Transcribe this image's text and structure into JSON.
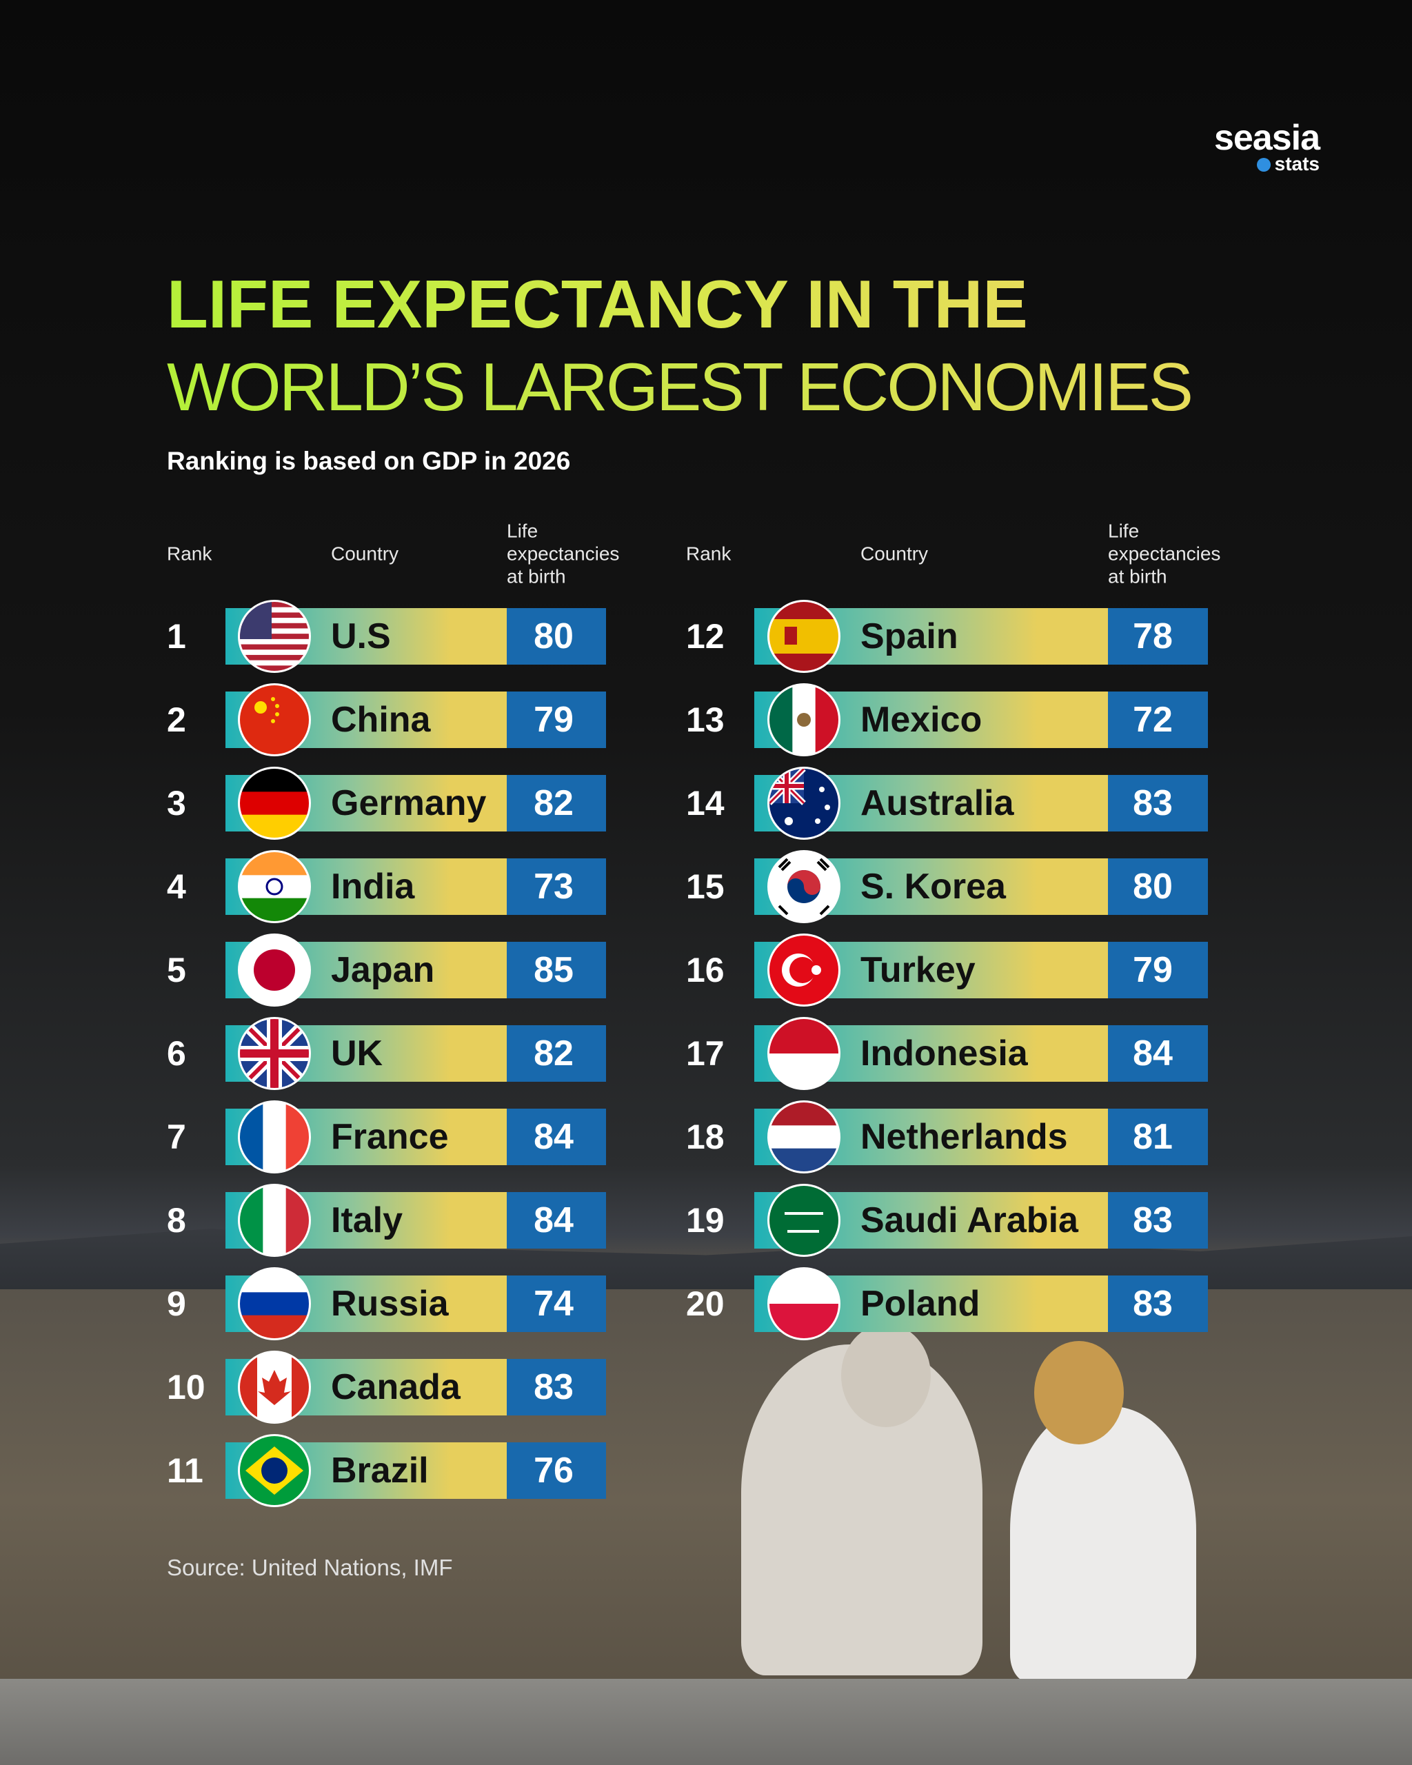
{
  "logo": {
    "name": "seasia",
    "tag": "stats"
  },
  "title": {
    "line1": "LIFE EXPECTANCY IN THE",
    "line2": "WORLD’S LARGEST ECONOMIES"
  },
  "subtitle": "Ranking is based on GDP in 2026",
  "tables": [
    {
      "columns": [
        "Rank",
        "Country",
        "Life expectancies at birth"
      ],
      "rows": [
        [
          1,
          "U.S",
          80
        ],
        [
          2,
          "China",
          79
        ],
        [
          3,
          "Germany",
          82
        ],
        [
          4,
          "India",
          73
        ],
        [
          5,
          "Japan",
          85
        ],
        [
          6,
          "UK",
          82
        ],
        [
          7,
          "France",
          84
        ],
        [
          8,
          "Italy",
          84
        ],
        [
          9,
          "Russia",
          74
        ],
        [
          10,
          "Canada",
          83
        ],
        [
          11,
          "Brazil",
          76
        ]
      ]
    },
    {
      "columns": [
        "Rank",
        "Country",
        "Life expectancies at birth"
      ],
      "rows": [
        [
          12,
          "Spain",
          78
        ],
        [
          13,
          "Mexico",
          72
        ],
        [
          14,
          "Australia",
          83
        ],
        [
          15,
          "S. Korea",
          80
        ],
        [
          16,
          "Turkey",
          79
        ],
        [
          17,
          "Indonesia",
          84
        ],
        [
          18,
          "Netherlands",
          81
        ],
        [
          19,
          "Saudi Arabia",
          83
        ],
        [
          20,
          "Poland",
          83
        ]
      ]
    }
  ],
  "source": "Source: United Nations, IMF"
}
